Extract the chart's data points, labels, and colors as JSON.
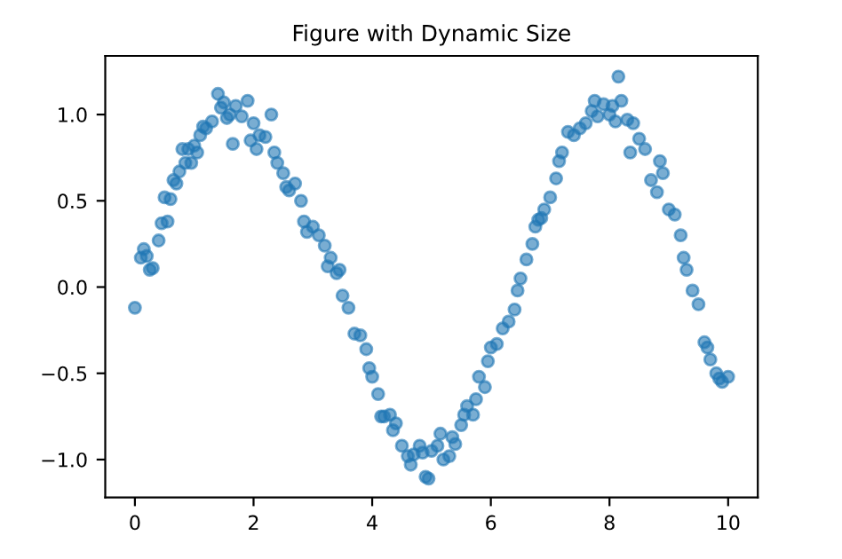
{
  "chart_data": {
    "type": "scatter",
    "title": "Figure with Dynamic Size",
    "x": [
      0.0,
      0.1,
      0.15,
      0.2,
      0.25,
      0.3,
      0.4,
      0.45,
      0.5,
      0.55,
      0.6,
      0.65,
      0.7,
      0.75,
      0.8,
      0.85,
      0.9,
      0.95,
      1.0,
      1.05,
      1.1,
      1.15,
      1.2,
      1.3,
      1.4,
      1.45,
      1.5,
      1.55,
      1.6,
      1.65,
      1.7,
      1.8,
      1.9,
      1.95,
      2.0,
      2.05,
      2.1,
      2.2,
      2.3,
      2.35,
      2.4,
      2.5,
      2.55,
      2.6,
      2.7,
      2.8,
      2.85,
      2.9,
      3.0,
      3.1,
      3.2,
      3.25,
      3.3,
      3.4,
      3.45,
      3.5,
      3.6,
      3.7,
      3.8,
      3.9,
      3.95,
      4.0,
      4.1,
      4.15,
      4.2,
      4.3,
      4.35,
      4.4,
      4.5,
      4.6,
      4.65,
      4.7,
      4.8,
      4.85,
      4.9,
      4.95,
      5.0,
      5.1,
      5.15,
      5.2,
      5.3,
      5.35,
      5.4,
      5.5,
      5.55,
      5.6,
      5.7,
      5.75,
      5.8,
      5.9,
      5.95,
      6.0,
      6.1,
      6.2,
      6.3,
      6.4,
      6.45,
      6.5,
      6.6,
      6.7,
      6.75,
      6.8,
      6.85,
      6.9,
      7.0,
      7.1,
      7.15,
      7.2,
      7.3,
      7.4,
      7.5,
      7.6,
      7.7,
      7.75,
      7.8,
      7.9,
      8.0,
      8.05,
      8.1,
      8.15,
      8.2,
      8.3,
      8.35,
      8.4,
      8.5,
      8.6,
      8.7,
      8.8,
      8.85,
      8.9,
      9.0,
      9.1,
      9.2,
      9.25,
      9.3,
      9.4,
      9.5,
      9.6,
      9.65,
      9.7,
      9.8,
      9.85,
      9.9,
      10.0
    ],
    "values": [
      -0.12,
      0.17,
      0.22,
      0.18,
      0.1,
      0.11,
      0.27,
      0.37,
      0.52,
      0.38,
      0.51,
      0.62,
      0.6,
      0.67,
      0.8,
      0.72,
      0.8,
      0.72,
      0.82,
      0.78,
      0.88,
      0.93,
      0.92,
      0.96,
      1.12,
      1.04,
      1.07,
      0.98,
      1.0,
      0.83,
      1.05,
      0.99,
      1.08,
      0.85,
      0.95,
      0.8,
      0.88,
      0.87,
      1.0,
      0.78,
      0.72,
      0.66,
      0.58,
      0.56,
      0.6,
      0.5,
      0.38,
      0.32,
      0.35,
      0.3,
      0.24,
      0.12,
      0.17,
      0.08,
      0.1,
      -0.05,
      -0.12,
      -0.27,
      -0.28,
      -0.36,
      -0.47,
      -0.52,
      -0.62,
      -0.75,
      -0.75,
      -0.74,
      -0.83,
      -0.79,
      -0.92,
      -0.98,
      -1.03,
      -0.97,
      -0.92,
      -0.96,
      -1.1,
      -1.11,
      -0.95,
      -0.92,
      -0.85,
      -1.0,
      -0.98,
      -0.87,
      -0.91,
      -0.8,
      -0.74,
      -0.69,
      -0.74,
      -0.65,
      -0.52,
      -0.58,
      -0.43,
      -0.35,
      -0.33,
      -0.24,
      -0.2,
      -0.13,
      -0.02,
      0.05,
      0.16,
      0.25,
      0.35,
      0.39,
      0.4,
      0.45,
      0.52,
      0.63,
      0.73,
      0.78,
      0.9,
      0.88,
      0.92,
      0.95,
      1.02,
      1.08,
      0.99,
      1.06,
      1.0,
      1.05,
      0.96,
      1.22,
      1.08,
      0.97,
      0.78,
      0.95,
      0.86,
      0.8,
      0.62,
      0.55,
      0.73,
      0.66,
      0.45,
      0.42,
      0.3,
      0.17,
      0.1,
      -0.02,
      -0.1,
      -0.32,
      -0.35,
      -0.42,
      -0.5,
      -0.53,
      -0.55,
      -0.52
    ],
    "color": "#1f77b4",
    "marker": "circle",
    "xlim": [
      -0.5,
      10.5
    ],
    "ylim": [
      -1.22,
      1.34
    ],
    "xticks": [
      0,
      2,
      4,
      6,
      8,
      10
    ],
    "yticks": [
      {
        "value": -1.0,
        "label": "−1.0"
      },
      {
        "value": -0.5,
        "label": "−0.5"
      },
      {
        "value": 0.0,
        "label": "0.0"
      },
      {
        "value": 0.5,
        "label": "0.5"
      },
      {
        "value": 1.0,
        "label": "1.0"
      }
    ],
    "grid": false,
    "legend": false
  }
}
